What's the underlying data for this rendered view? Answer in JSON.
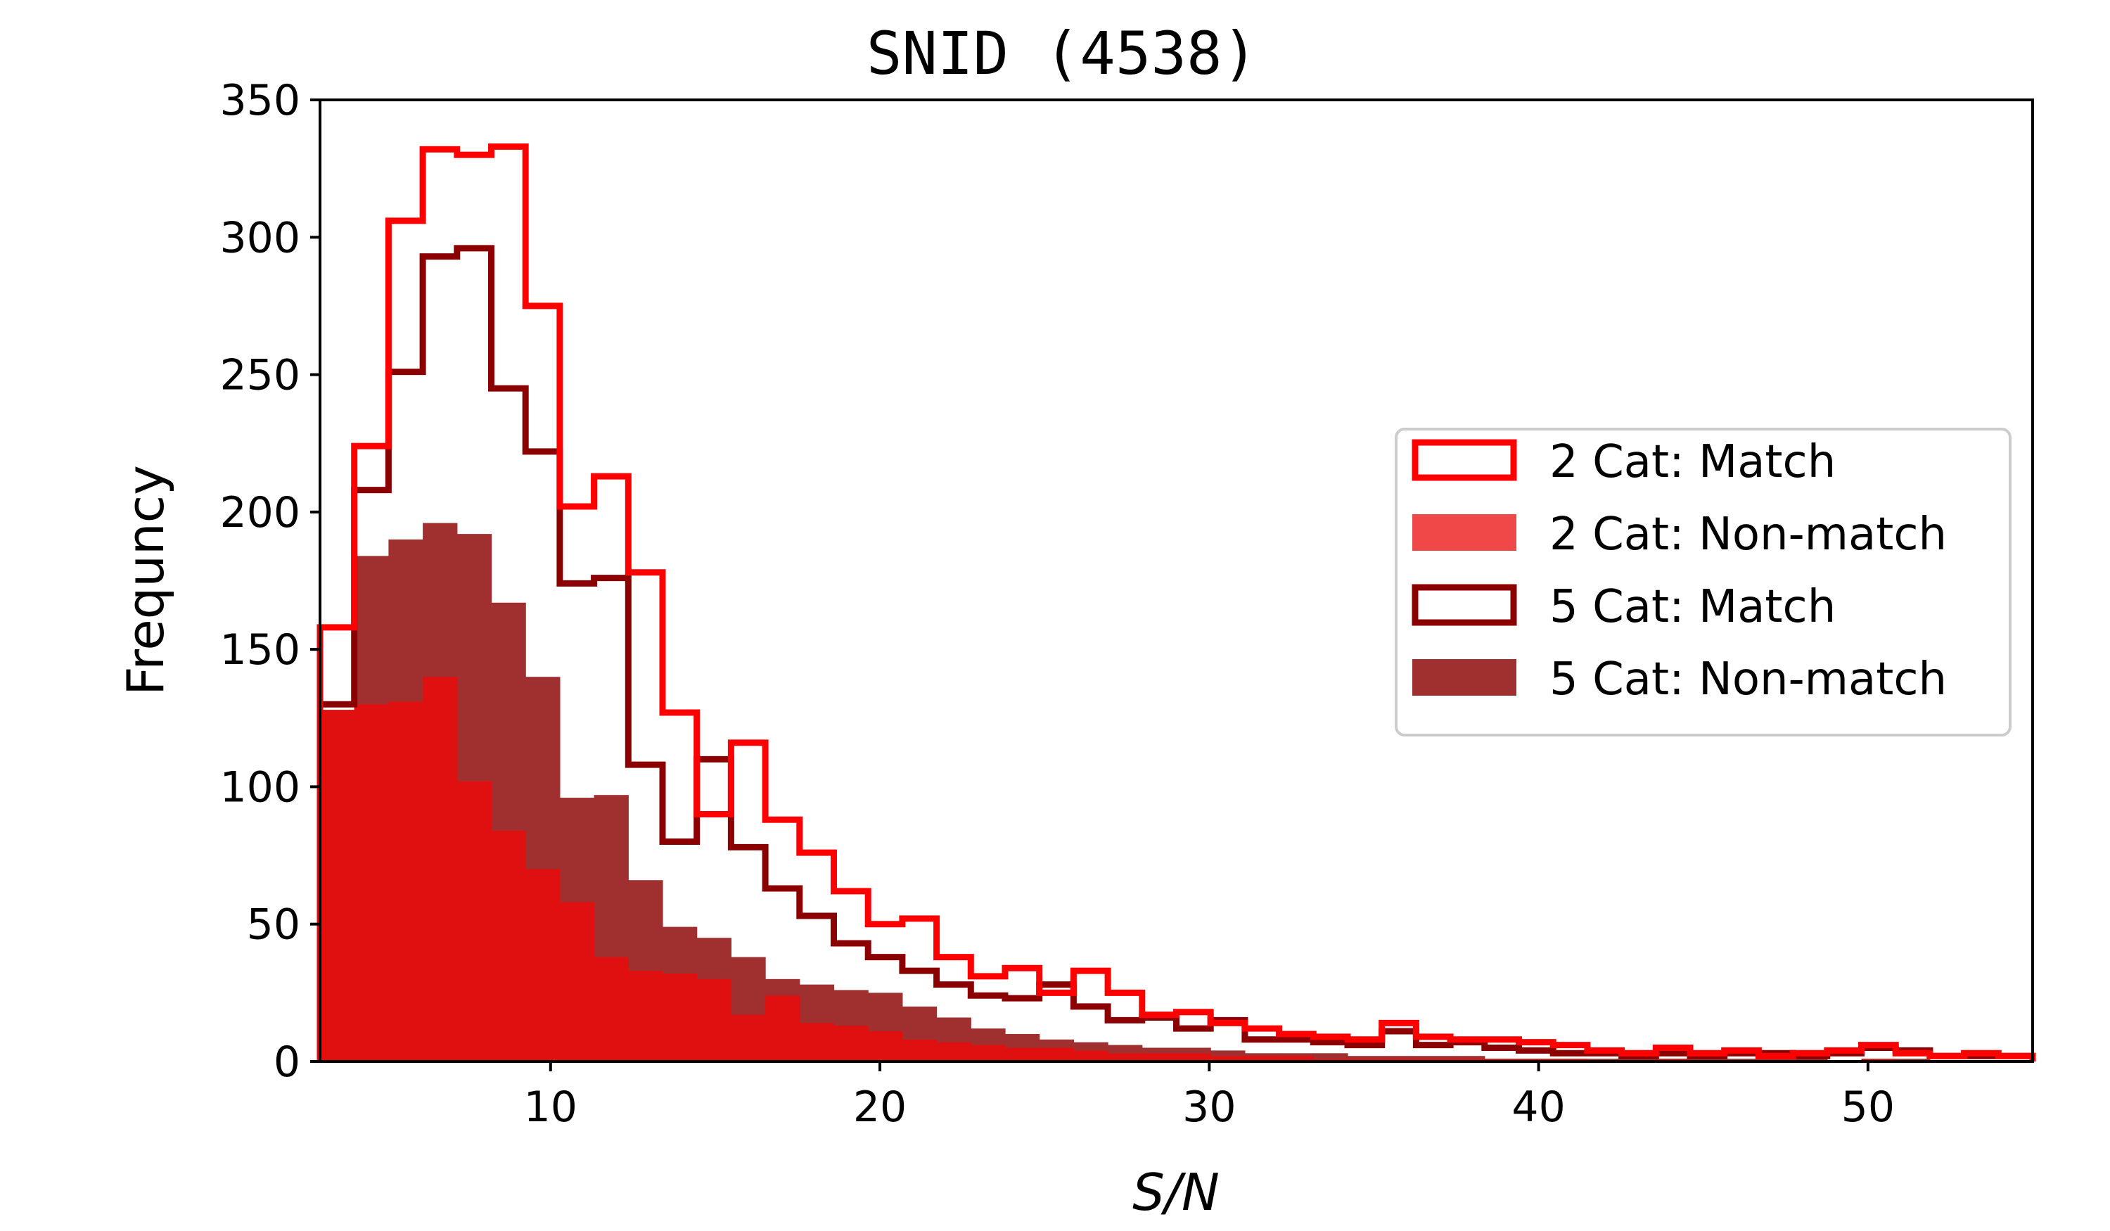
{
  "chart_data": {
    "type": "histogram",
    "title": "SNID (4538)",
    "xlabel": "S/N",
    "ylabel": "Frequncy",
    "xlim": [
      3,
      55
    ],
    "ylim": [
      0,
      350
    ],
    "xticks": [
      10,
      20,
      30,
      40,
      50
    ],
    "yticks": [
      0,
      50,
      100,
      150,
      200,
      250,
      300,
      350
    ],
    "legend_position": "center-right",
    "bin_edges": [
      3.0,
      4.04,
      5.08,
      6.12,
      7.16,
      8.2,
      9.24,
      10.28,
      11.32,
      12.36,
      13.4,
      14.44,
      15.48,
      16.52,
      17.56,
      18.6,
      19.64,
      20.68,
      21.72,
      22.76,
      23.8,
      24.84,
      25.88,
      26.92,
      27.96,
      29.0,
      30.04,
      31.08,
      32.12,
      33.16,
      34.2,
      35.24,
      36.28,
      37.32,
      38.36,
      39.4,
      40.44,
      41.48,
      42.52,
      43.56,
      44.6,
      45.64,
      46.68,
      47.72,
      48.76,
      49.8,
      50.84,
      51.88,
      52.92,
      53.96,
      55.0
    ],
    "series": [
      {
        "name": "2 Cat: Match",
        "style": "step",
        "color": "#ff0000",
        "values": [
          158,
          224,
          306,
          332,
          330,
          333,
          275,
          202,
          213,
          178,
          127,
          90,
          116,
          88,
          76,
          62,
          50,
          52,
          38,
          31,
          34,
          25,
          33,
          25,
          17,
          18,
          14,
          12,
          10,
          9,
          8,
          14,
          9,
          8,
          8,
          7,
          6,
          4,
          3,
          5,
          3,
          4,
          2,
          3,
          4,
          6,
          3,
          2,
          3,
          2
        ]
      },
      {
        "name": "2 Cat: Non-match",
        "style": "filled",
        "color": "#e11010",
        "values": [
          128,
          130,
          131,
          140,
          102,
          84,
          70,
          58,
          38,
          33,
          32,
          30,
          17,
          24,
          14,
          13,
          11,
          8,
          7,
          6,
          5,
          5,
          4,
          3,
          3,
          3,
          2,
          2,
          2,
          1,
          1,
          1,
          1,
          1,
          1,
          1,
          1,
          0,
          0,
          1,
          0,
          0,
          0,
          0,
          0,
          1,
          0,
          0,
          0,
          0
        ]
      },
      {
        "name": "5 Cat: Match",
        "style": "step",
        "color": "#8b0000",
        "values": [
          130,
          208,
          251,
          293,
          296,
          245,
          222,
          174,
          176,
          108,
          80,
          110,
          78,
          63,
          53,
          43,
          38,
          33,
          28,
          24,
          23,
          28,
          20,
          15,
          16,
          12,
          15,
          8,
          8,
          7,
          6,
          11,
          6,
          7,
          5,
          4,
          3,
          3,
          2,
          3,
          2,
          3,
          3,
          2,
          3,
          5,
          4,
          2,
          2,
          2
        ]
      },
      {
        "name": "5 Cat: Non-match",
        "style": "filled",
        "color": "#a03030",
        "values": [
          115,
          184,
          190,
          196,
          192,
          167,
          140,
          96,
          97,
          66,
          49,
          45,
          38,
          30,
          28,
          26,
          25,
          20,
          16,
          12,
          10,
          8,
          7,
          6,
          5,
          5,
          4,
          3,
          3,
          3,
          2,
          2,
          2,
          2,
          1,
          1,
          1,
          1,
          1,
          1,
          1,
          1,
          1,
          1,
          0,
          0,
          1,
          0,
          0,
          0
        ]
      }
    ]
  }
}
